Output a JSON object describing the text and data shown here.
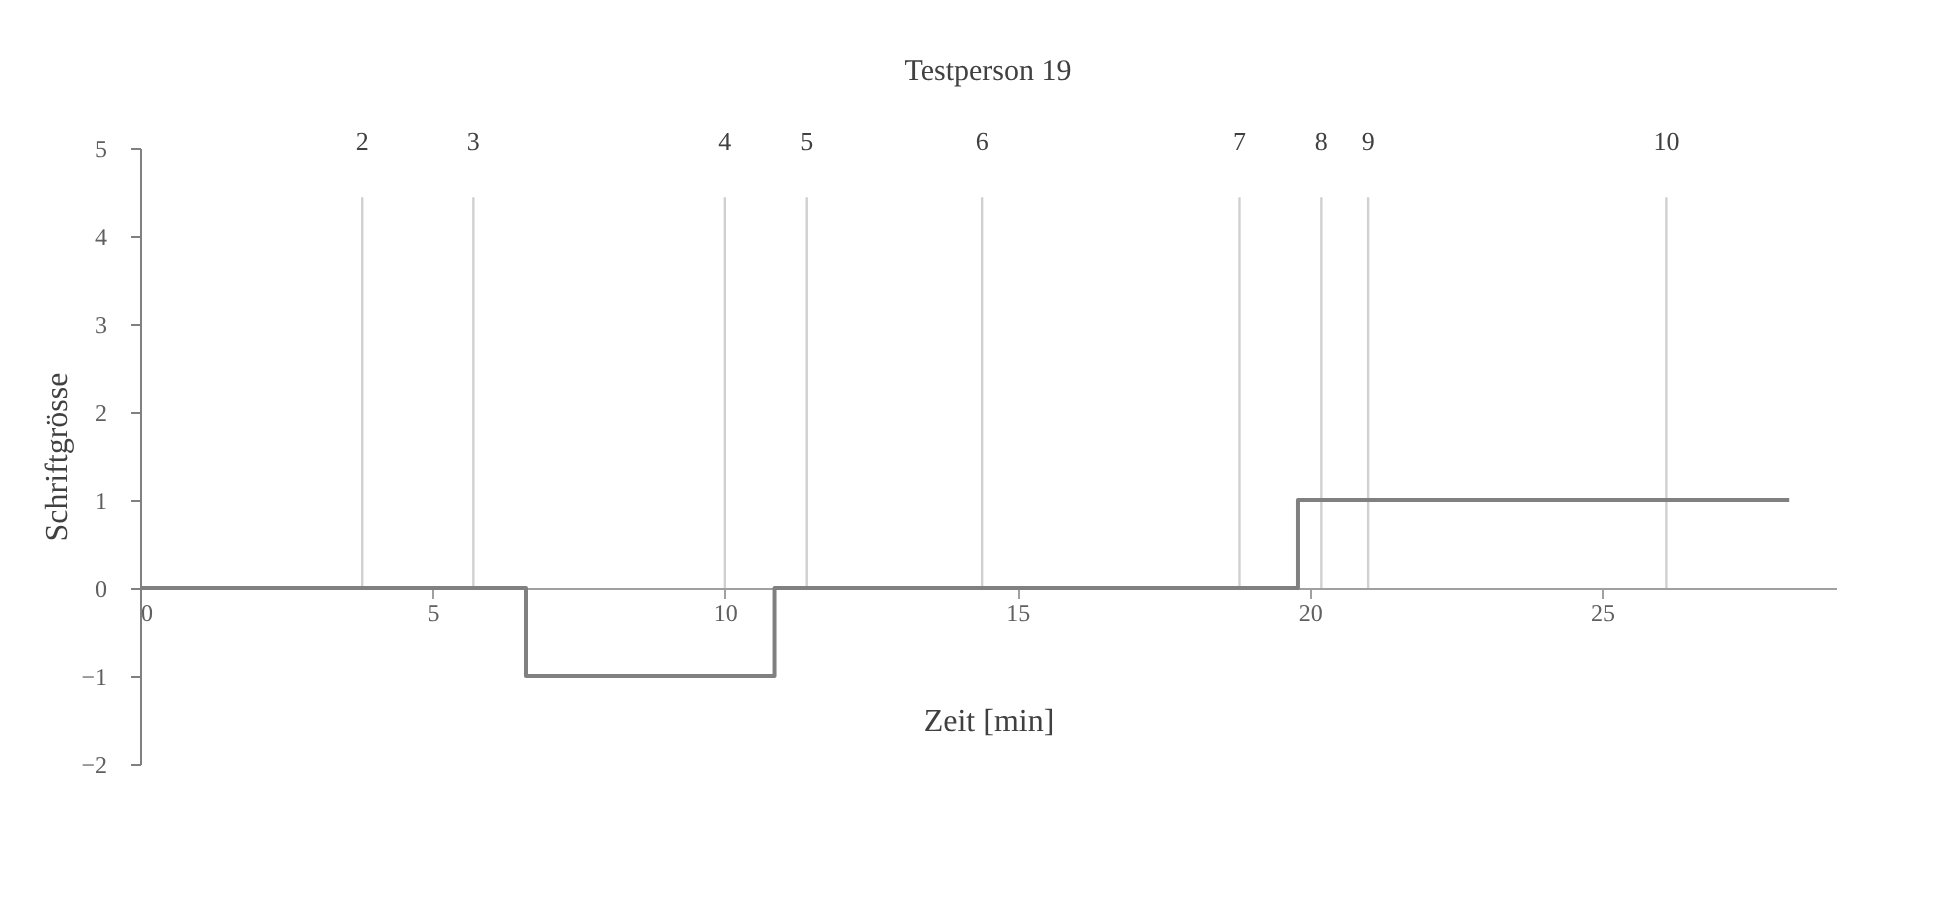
{
  "chart_data": {
    "type": "step",
    "title": "Testperson 19",
    "xlabel": "Zeit [min]",
    "ylabel": "Schriftgrösse",
    "x": [
      0,
      6.6,
      10.85,
      19.8,
      28.2
    ],
    "series": [
      {
        "color": "#808080",
        "values": [
          0,
          -1,
          0,
          1,
          1
        ]
      }
    ],
    "xlim": [
      0,
      29
    ],
    "xticks": [
      0,
      5,
      10,
      15,
      20,
      25
    ],
    "ylim": [
      -2,
      5
    ],
    "yticks": [
      -2,
      -1,
      0,
      1,
      2,
      3,
      4,
      5
    ],
    "grid": false,
    "line_style": "solid",
    "ref_lines": [
      {
        "axis": "x",
        "value": 3.8,
        "color": "#d0d0d0"
      },
      {
        "axis": "x",
        "value": 5.7,
        "color": "#d0d0d0"
      },
      {
        "axis": "x",
        "value": 10.0,
        "color": "#d0d0d0"
      },
      {
        "axis": "x",
        "value": 11.4,
        "color": "#d0d0d0"
      },
      {
        "axis": "x",
        "value": 14.4,
        "color": "#d0d0d0"
      },
      {
        "axis": "x",
        "value": 18.8,
        "color": "#d0d0d0"
      },
      {
        "axis": "x",
        "value": 20.2,
        "color": "#d0d0d0"
      },
      {
        "axis": "x",
        "value": 21.0,
        "color": "#d0d0d0"
      },
      {
        "axis": "x",
        "value": 26.1,
        "color": "#d0d0d0"
      }
    ],
    "annotations": [
      "2",
      "3",
      "4",
      "5",
      "6",
      "7",
      "8",
      "9",
      "10"
    ]
  }
}
